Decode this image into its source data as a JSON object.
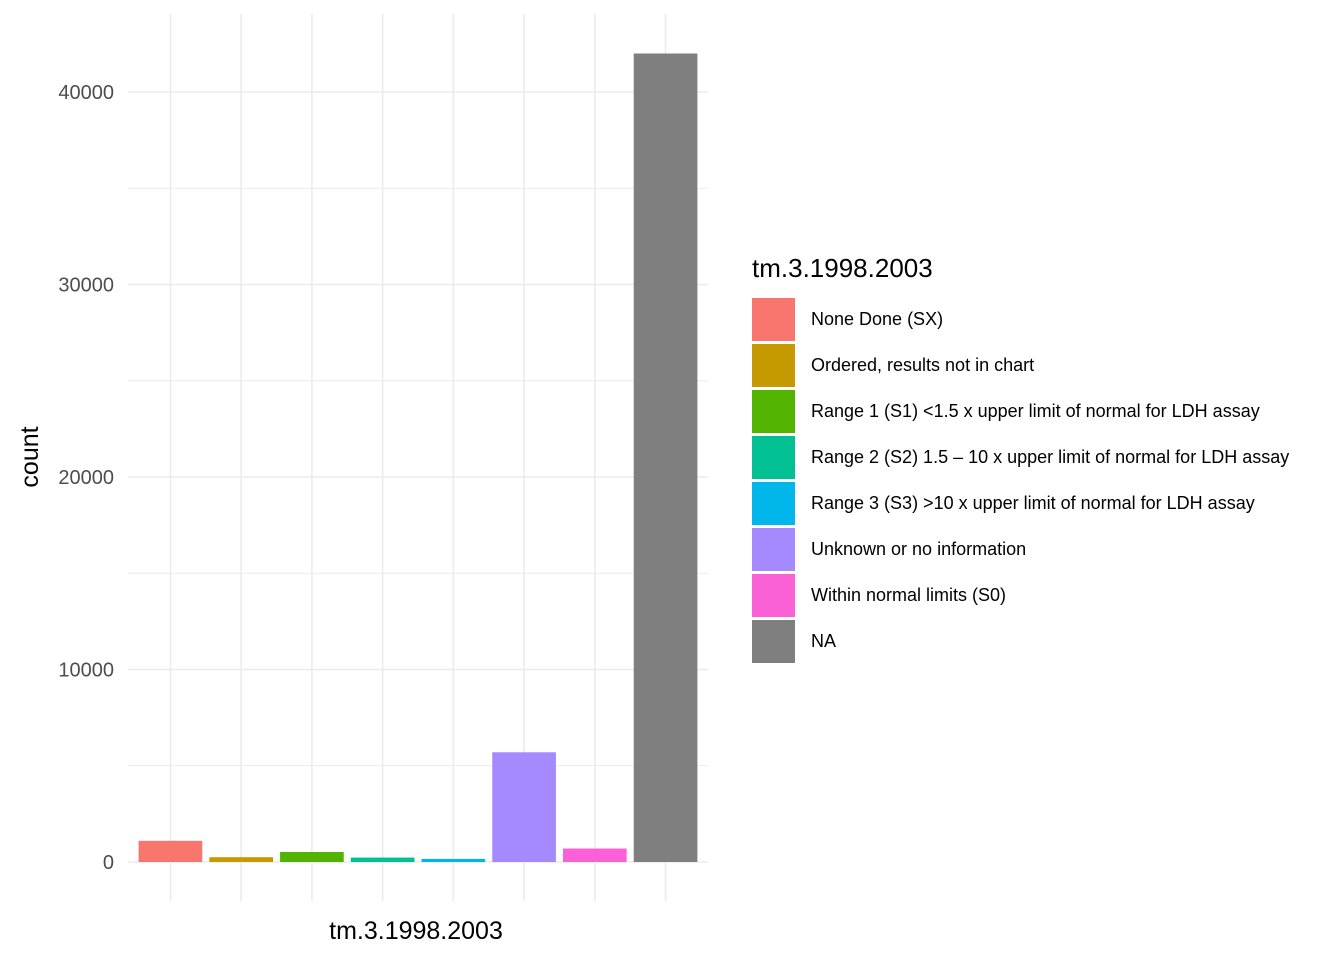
{
  "chart_data": {
    "type": "bar",
    "xlabel": "tm.3.1998.2003",
    "ylabel": "count",
    "ylim": [
      0,
      43000
    ],
    "yticks": [
      0,
      10000,
      20000,
      30000,
      40000
    ],
    "grid": true,
    "legend_title": "tm.3.1998.2003",
    "legend_position": "right",
    "categories": [
      "None Done (SX)",
      "Ordered, results not in chart",
      "Range 1 (S1) <1.5 x upper limit of normal for LDH assay",
      "Range 2 (S2) 1.5 – 10 x upper limit of normal for LDH assay",
      "Range 3 (S3) >10 x upper limit of normal for LDH assay",
      "Unknown or no information",
      "Within normal limits (S0)",
      "NA"
    ],
    "values": [
      1100,
      250,
      520,
      230,
      160,
      5700,
      700,
      42000
    ],
    "colors": [
      "#F8766D",
      "#C49A00",
      "#53B400",
      "#00C094",
      "#00B6EB",
      "#A58AFF",
      "#FB61D7",
      "#7F7F7F"
    ]
  }
}
